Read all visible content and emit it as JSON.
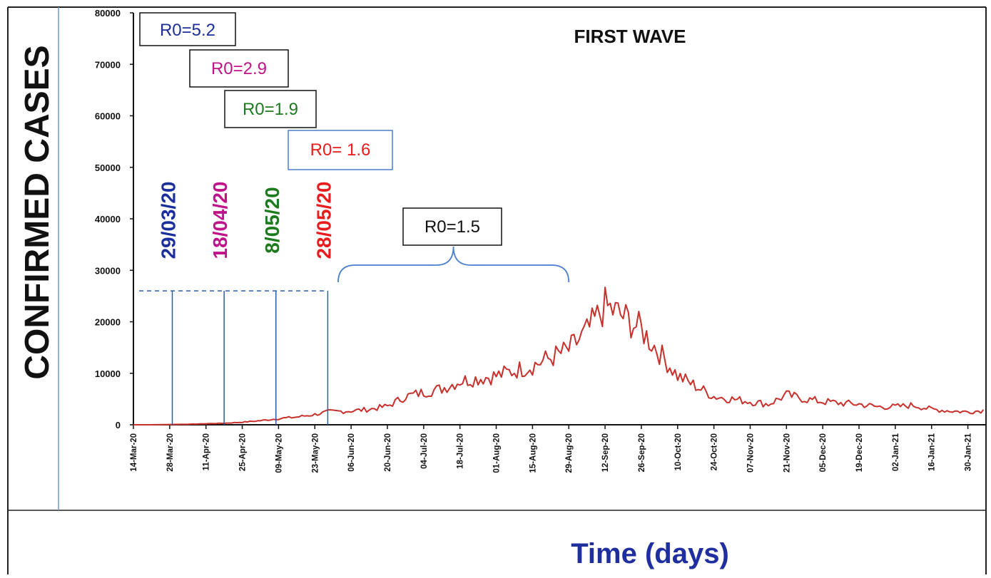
{
  "chart_data": {
    "type": "line",
    "title": "FIRST WAVE",
    "xlabel": "Time (days)",
    "ylabel": "CONFIRMED CASES",
    "ylim": [
      0,
      80000
    ],
    "y_ticks": [
      "0",
      "10000",
      "20000",
      "30000",
      "40000",
      "50000",
      "60000",
      "70000",
      "80000"
    ],
    "x_ticks": [
      "14-Mar-20",
      "28-Mar-20",
      "11-Apr-20",
      "25-Apr-20",
      "09-May-20",
      "23-May-20",
      "06-Jun-20",
      "20-Jun-20",
      "04-Jul-20",
      "18-Jul-20",
      "01-Aug-20",
      "15-Aug-20",
      "29-Aug-20",
      "12-Sep-20",
      "26-Sep-20",
      "10-Oct-20",
      "24-Oct-20",
      "07-Nov-20",
      "21-Nov-20",
      "05-Dec-20",
      "19-Dec-20",
      "02-Jan-21",
      "16-Jan-21",
      "30-Jan-21"
    ],
    "grid": false,
    "series": [
      {
        "color": "#c8312b",
        "points": [
          [
            "2020-03-14",
            0
          ],
          [
            "2020-03-21",
            0
          ],
          [
            "2020-03-28",
            50
          ],
          [
            "2020-04-04",
            100
          ],
          [
            "2020-04-11",
            200
          ],
          [
            "2020-04-18",
            300
          ],
          [
            "2020-04-25",
            500
          ],
          [
            "2020-05-02",
            800
          ],
          [
            "2020-05-09",
            1200
          ],
          [
            "2020-05-16",
            1500
          ],
          [
            "2020-05-23",
            2000
          ],
          [
            "2020-05-28",
            2500
          ],
          [
            "2020-06-06",
            2700
          ],
          [
            "2020-06-13",
            3000
          ],
          [
            "2020-06-20",
            3600
          ],
          [
            "2020-06-27",
            5500
          ],
          [
            "2020-07-04",
            6300
          ],
          [
            "2020-07-11",
            7000
          ],
          [
            "2020-07-18",
            8500
          ],
          [
            "2020-07-25",
            9000
          ],
          [
            "2020-08-01",
            9500
          ],
          [
            "2020-08-08",
            10500
          ],
          [
            "2020-08-15",
            11500
          ],
          [
            "2020-08-22",
            13000
          ],
          [
            "2020-08-29",
            14500
          ],
          [
            "2020-09-05",
            18000
          ],
          [
            "2020-09-12",
            23000
          ],
          [
            "2020-09-19",
            21000
          ],
          [
            "2020-09-26",
            18500
          ],
          [
            "2020-10-03",
            14000
          ],
          [
            "2020-10-10",
            9500
          ],
          [
            "2020-10-17",
            7500
          ],
          [
            "2020-10-24",
            5500
          ],
          [
            "2020-10-31",
            5000
          ],
          [
            "2020-11-07",
            4500
          ],
          [
            "2020-11-14",
            4000
          ],
          [
            "2020-11-21",
            5800
          ],
          [
            "2020-11-28",
            5000
          ],
          [
            "2020-12-05",
            4500
          ],
          [
            "2020-12-12",
            4200
          ],
          [
            "2020-12-19",
            4000
          ],
          [
            "2020-12-26",
            3500
          ],
          [
            "2021-01-02",
            3500
          ],
          [
            "2021-01-09",
            3800
          ],
          [
            "2021-01-16",
            3000
          ],
          [
            "2021-01-23",
            2700
          ],
          [
            "2021-01-30",
            2500
          ],
          [
            "2021-02-05",
            2800
          ]
        ]
      }
    ],
    "annotations": {
      "r0_boxes": [
        {
          "text": "R0=5.2",
          "color": "#1b2f9c"
        },
        {
          "text": "R0=2.9",
          "color": "#c0138a"
        },
        {
          "text": "R0=1.9",
          "color": "#1d7a1d"
        },
        {
          "text": "R0= 1.6",
          "color": "#e81c1c"
        },
        {
          "text": "R0=1.5",
          "color": "#111111"
        }
      ],
      "date_labels": [
        {
          "text": "29/03/20",
          "date": "2020-03-29",
          "color": "#1b2f9c"
        },
        {
          "text": "18/04/20",
          "date": "2020-04-18",
          "color": "#c0138a"
        },
        {
          "text": "8/05/20",
          "date": "2020-05-08",
          "color": "#1d7a1d"
        },
        {
          "text": "28/05/20",
          "date": "2020-05-28",
          "color": "#e81c1c"
        }
      ],
      "brace_range": [
        "2020-06-01",
        "2020-08-29"
      ],
      "dashed_level": 26000
    },
    "colors": {
      "line": "#c8312b",
      "marker": "#2a5db0",
      "axis": "#111111",
      "xlabel": "#1f2fa0"
    }
  }
}
